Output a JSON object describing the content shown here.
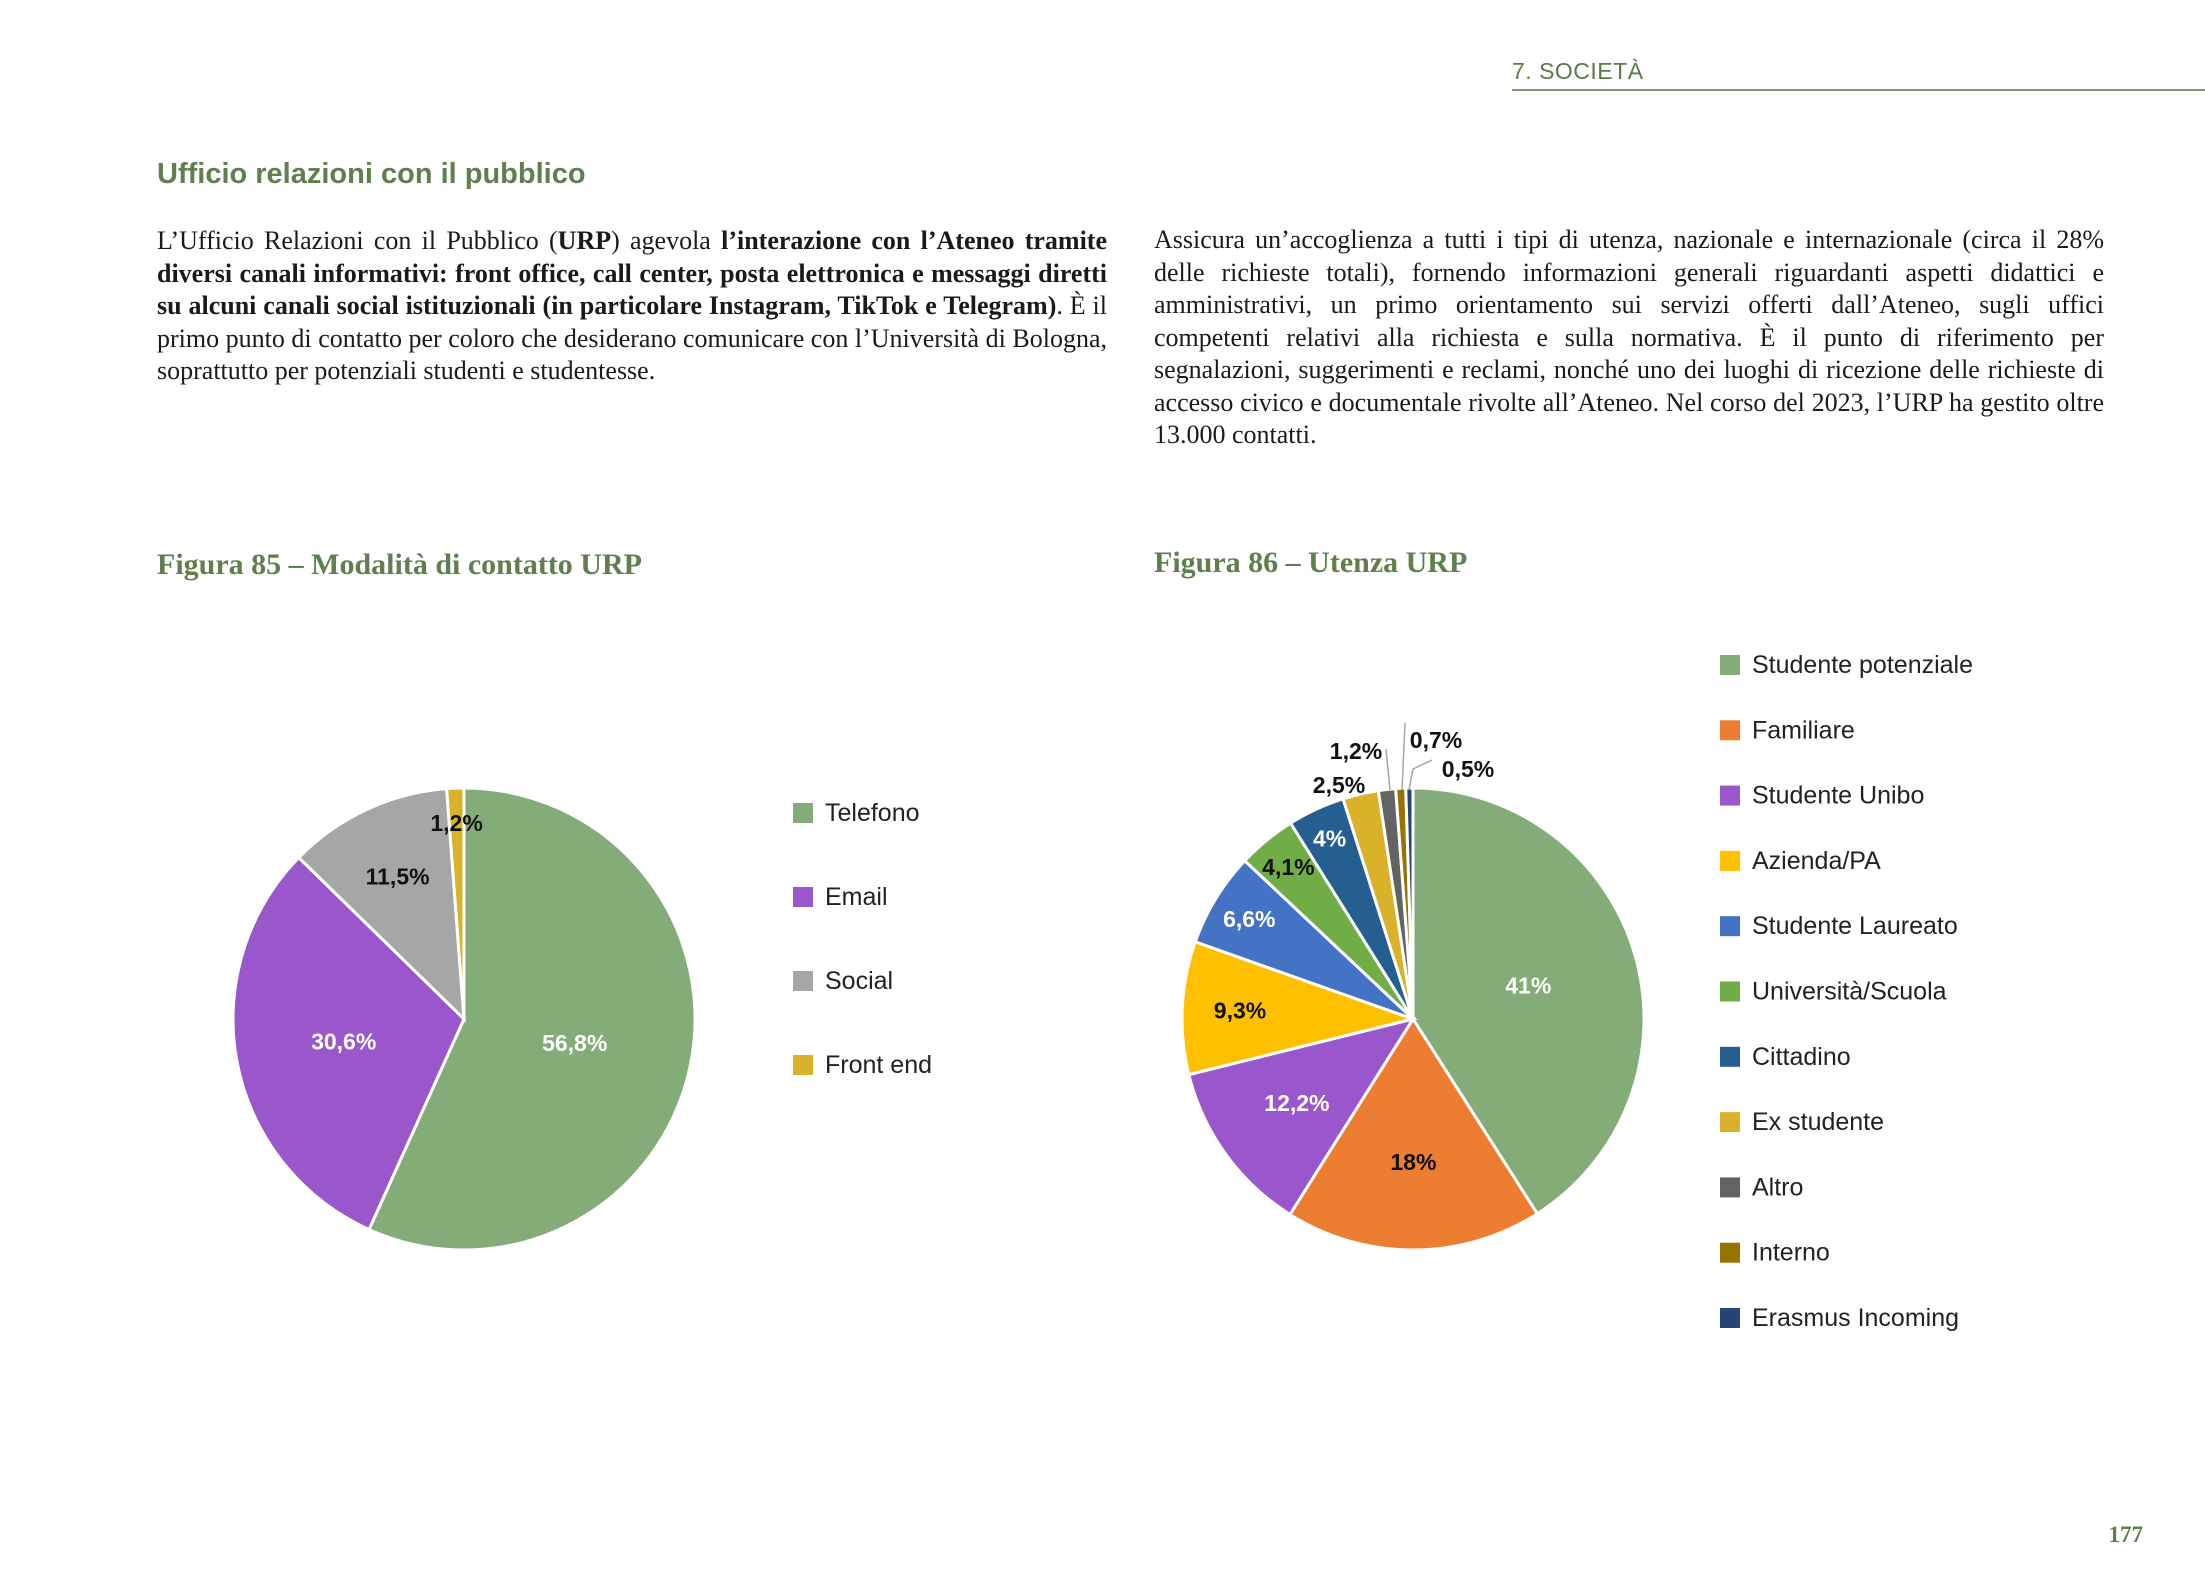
{
  "header": {
    "running_title": "7. SOCIETÀ"
  },
  "section": {
    "title": "Ufficio relazioni con il pubblico"
  },
  "left_paragraph": {
    "p1": "L’Ufficio Relazioni con il Pubblico (",
    "b1": "URP",
    "p2": ") agevola ",
    "b2": "l’interazione con l’Ateneo tramite diversi canali informativi: front office, call center, posta elettronica e messaggi diretti su alcuni canali social istituzionali (in particolare Instagram, TikTok e Telegram)",
    "p3": ". È il primo punto di contatto per coloro che desiderano comunicare con l’Università di Bologna, soprattutto per potenziali studenti e studentesse."
  },
  "right_paragraph": {
    "text": "Assicura un’accoglienza a tutti i tipi di utenza, nazionale e internazionale (circa il 28% delle richieste totali), fornendo informazioni generali riguardanti aspetti didattici e amministrativi, un primo orientamento sui servizi offerti dall’Ateneo, sugli uffici competenti relativi alla richiesta e sulla normativa. È il punto di riferimento per segnalazioni, suggerimenti e reclami, nonché uno dei luoghi di ricezione delle richieste di accesso civico e documentale rivolte all’Ateneo. Nel corso del 2023, l’URP ha gestito oltre 13.000 contatti."
  },
  "page_number": "177",
  "chart_data": [
    {
      "type": "pie",
      "title": "Figura 85 – Modalità di contatto URP",
      "legend_position": "right",
      "slices": [
        {
          "name": "Telefono",
          "value": 56.8,
          "label": "56,8%",
          "color": "#83ac78",
          "label_color": "#ffffff"
        },
        {
          "name": "Email",
          "value": 30.6,
          "label": "30,6%",
          "color": "#9a57cc",
          "label_color": "#ffffff"
        },
        {
          "name": "Social",
          "value": 11.5,
          "label": "11,5%",
          "color": "#a6a6a6",
          "label_color": "#111111"
        },
        {
          "name": "Front end",
          "value": 1.2,
          "label": "1,2%",
          "color": "#d9b22a",
          "label_color": "#111111"
        }
      ]
    },
    {
      "type": "pie",
      "title": "Figura 86 – Utenza URP",
      "legend_position": "right",
      "slices": [
        {
          "name": "Studente potenziale",
          "value": 41,
          "label": "41%",
          "color": "#83ac78",
          "label_color": "#ffffff"
        },
        {
          "name": "Familiare",
          "value": 18,
          "label": "18%",
          "color": "#ed7d31",
          "label_color": "#111111"
        },
        {
          "name": "Studente Unibo",
          "value": 12.2,
          "label": "12,2%",
          "color": "#9a57cc",
          "label_color": "#ffffff"
        },
        {
          "name": "Azienda/PA",
          "value": 9.3,
          "label": "9,3%",
          "color": "#ffc000",
          "label_color": "#111111"
        },
        {
          "name": "Studente Laureato",
          "value": 6.6,
          "label": "6,6%",
          "color": "#4472c4",
          "label_color": "#ffffff"
        },
        {
          "name": "Università/Scuola",
          "value": 4.1,
          "label": "4,1%",
          "color": "#70ad47",
          "label_color": "#111111"
        },
        {
          "name": "Cittadino",
          "value": 4,
          "label": "4%",
          "color": "#255e91",
          "label_color": "#ffffff"
        },
        {
          "name": "Ex studente",
          "value": 2.5,
          "label": "2,5%",
          "color": "#d9b22a",
          "label_color": "#111111"
        },
        {
          "name": "Altro",
          "value": 1.2,
          "label": "1,2%",
          "color": "#636363",
          "label_color": "#111111"
        },
        {
          "name": "Interno",
          "value": 0.7,
          "label": "0,7%",
          "color": "#997300",
          "label_color": "#111111"
        },
        {
          "name": "Erasmus Incoming",
          "value": 0.5,
          "label": "0,5%",
          "color": "#264478",
          "label_color": "#111111"
        }
      ]
    }
  ]
}
